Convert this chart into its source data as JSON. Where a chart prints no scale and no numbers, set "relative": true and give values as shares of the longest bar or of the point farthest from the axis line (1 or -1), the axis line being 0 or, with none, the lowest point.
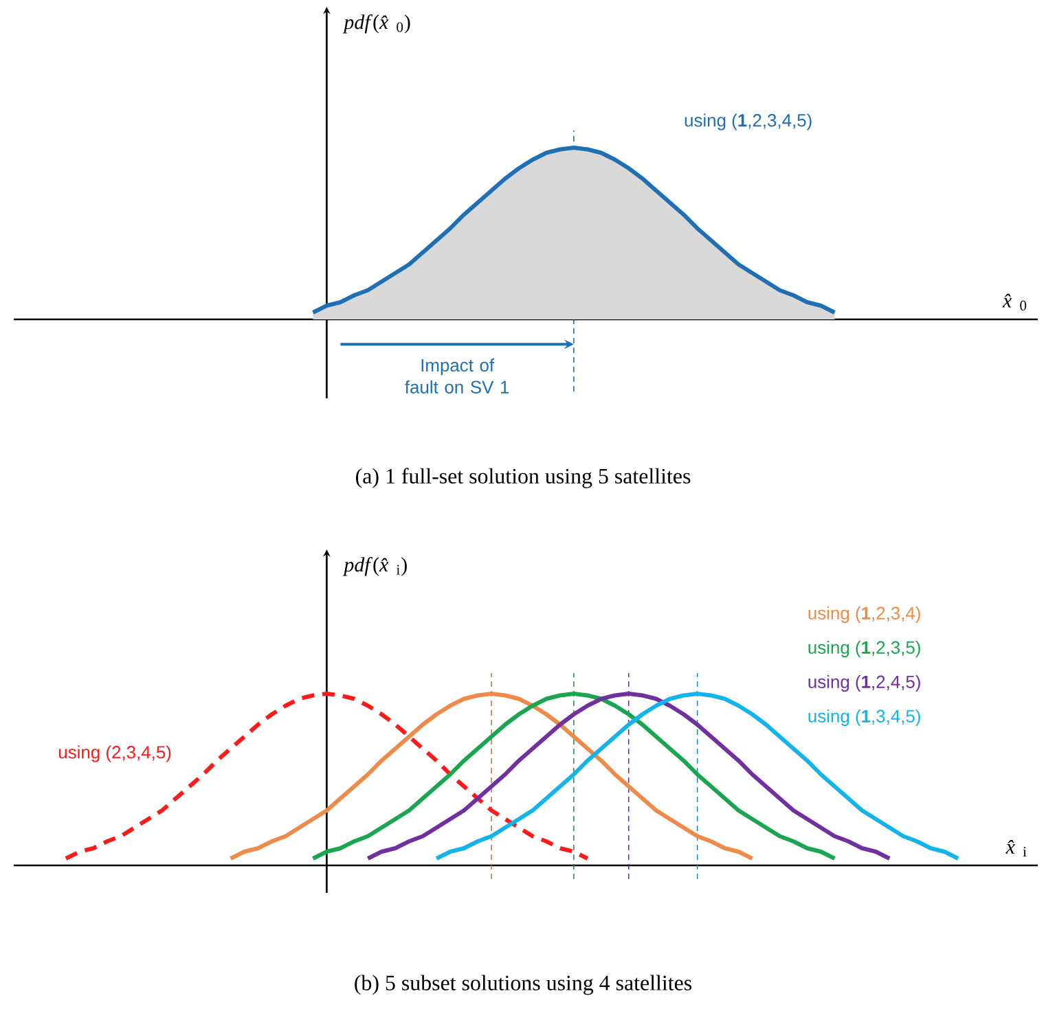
{
  "chart_data": [
    {
      "type": "area",
      "title": "(a) 1 full-set solution using 5 satellites",
      "xlabel": "*x̂*$_{0}$",
      "ylabel": "*pdf*(*x̂*$_{0}$)",
      "relative": true,
      "categories": [
        null,
        null,
        null,
        null,
        null,
        null,
        null,
        null,
        null,
        null,
        null,
        null,
        null,
        null,
        null,
        null,
        null,
        null,
        null,
        null,
        null,
        null,
        null,
        null,
        null,
        null,
        null,
        null,
        null,
        null,
        null,
        null,
        null,
        null,
        null,
        null,
        null,
        null,
        null,
        null,
        null,
        null,
        null,
        null,
        null,
        null,
        null,
        null,
        null,
        null,
        null,
        null,
        null,
        null,
        null,
        null,
        null,
        null,
        null,
        null,
        null,
        null,
        null,
        null,
        null,
        null,
        null,
        null,
        null,
        null,
        null,
        null,
        null,
        null
      ],
      "annotations": [
        "Impact of fault on SV 1"
      ],
      "series": [
        {
          "name": "using (**1**,2,3,4,5)",
          "color": "#1f6fb5",
          "values": [
            null,
            null,
            null,
            null,
            null,
            null,
            null,
            null,
            null,
            null,
            null,
            null,
            null,
            null,
            null,
            null,
            null,
            null,
            null,
            null,
            null,
            0.04,
            0.08,
            0.1,
            0.14,
            0.17,
            0.22,
            0.27,
            0.32,
            0.39,
            0.46,
            0.53,
            0.61,
            0.68,
            0.75,
            0.82,
            0.88,
            0.93,
            0.97,
            0.99,
            1,
            0.99,
            0.97,
            0.93,
            0.88,
            0.82,
            0.75,
            0.68,
            0.61,
            0.53,
            0.46,
            0.39,
            0.32,
            0.27,
            0.22,
            0.17,
            0.14,
            0.1,
            0.08,
            0.04,
            null,
            null,
            null,
            null,
            null,
            null,
            null,
            null,
            null,
            null,
            null,
            null,
            null,
            null
          ]
        }
      ]
    },
    {
      "type": "line",
      "title": "(b) 5 subset solutions using 4 satellites",
      "xlabel": "*x̂*$_{i}$",
      "ylabel": "*pdf*(*x̂*$_{i}$)",
      "relative": true,
      "categories": [
        null,
        null,
        null,
        null,
        null,
        null,
        null,
        null,
        null,
        null,
        null,
        null,
        null,
        null,
        null,
        null,
        null,
        null,
        null,
        null,
        null,
        null,
        null,
        null,
        null,
        null,
        null,
        null,
        null,
        null,
        null,
        null,
        null,
        null,
        null,
        null,
        null,
        null,
        null,
        null,
        null,
        null,
        null,
        null,
        null,
        null,
        null,
        null,
        null,
        null,
        null,
        null,
        null,
        null,
        null,
        null,
        null,
        null,
        null,
        null,
        null,
        null,
        null,
        null,
        null,
        null,
        null,
        null,
        null,
        null,
        null,
        null,
        null,
        null
      ],
      "series": [
        {
          "name": "using (2,3,4,5)",
          "color": "#ff1a1a",
          "line_style": "dashed",
          "values": [
            null,
            null,
            null,
            0.04,
            0.08,
            0.1,
            0.14,
            0.17,
            0.22,
            0.27,
            0.32,
            0.39,
            0.46,
            0.53,
            0.61,
            0.68,
            0.75,
            0.82,
            0.88,
            0.93,
            0.97,
            0.99,
            1,
            0.99,
            0.97,
            0.93,
            0.88,
            0.82,
            0.75,
            0.68,
            0.61,
            0.53,
            0.46,
            0.39,
            0.32,
            0.27,
            0.22,
            0.17,
            0.14,
            0.1,
            0.08,
            0.04,
            null,
            null,
            null,
            null,
            null,
            null,
            null,
            null,
            null,
            null,
            null,
            null,
            null,
            null,
            null,
            null,
            null,
            null,
            null,
            null,
            null,
            null,
            null,
            null,
            null,
            null,
            null,
            null,
            null,
            null,
            null,
            null
          ]
        },
        {
          "name": "using (**1**,2,3,4)",
          "color": "#ee8a4a",
          "values": [
            null,
            null,
            null,
            null,
            null,
            null,
            null,
            null,
            null,
            null,
            null,
            null,
            null,
            null,
            null,
            0.04,
            0.08,
            0.1,
            0.14,
            0.17,
            0.22,
            0.27,
            0.32,
            0.39,
            0.46,
            0.53,
            0.61,
            0.68,
            0.75,
            0.82,
            0.88,
            0.93,
            0.97,
            0.99,
            1,
            0.99,
            0.97,
            0.93,
            0.88,
            0.82,
            0.75,
            0.68,
            0.61,
            0.53,
            0.46,
            0.39,
            0.32,
            0.27,
            0.22,
            0.17,
            0.14,
            0.1,
            0.08,
            0.04,
            null,
            null,
            null,
            null,
            null,
            null,
            null,
            null,
            null,
            null,
            null,
            null,
            null,
            null,
            null,
            null,
            null,
            null,
            null,
            null
          ]
        },
        {
          "name": "using (**1**,2,3,5)",
          "color": "#1aa650",
          "values": [
            null,
            null,
            null,
            null,
            null,
            null,
            null,
            null,
            null,
            null,
            null,
            null,
            null,
            null,
            null,
            null,
            null,
            null,
            null,
            null,
            null,
            0.04,
            0.08,
            0.1,
            0.14,
            0.17,
            0.22,
            0.27,
            0.32,
            0.39,
            0.46,
            0.53,
            0.61,
            0.68,
            0.75,
            0.82,
            0.88,
            0.93,
            0.97,
            0.99,
            1,
            0.99,
            0.97,
            0.93,
            0.88,
            0.82,
            0.75,
            0.68,
            0.61,
            0.53,
            0.46,
            0.39,
            0.32,
            0.27,
            0.22,
            0.17,
            0.14,
            0.1,
            0.08,
            0.04,
            null,
            null,
            null,
            null,
            null,
            null,
            null,
            null,
            null,
            null,
            null,
            null,
            null,
            null
          ]
        },
        {
          "name": "using (**1**,2,4,5)",
          "color": "#7030a0",
          "values": [
            null,
            null,
            null,
            null,
            null,
            null,
            null,
            null,
            null,
            null,
            null,
            null,
            null,
            null,
            null,
            null,
            null,
            null,
            null,
            null,
            null,
            null,
            null,
            null,
            null,
            0.04,
            0.08,
            0.1,
            0.14,
            0.17,
            0.22,
            0.27,
            0.32,
            0.39,
            0.46,
            0.53,
            0.61,
            0.68,
            0.75,
            0.82,
            0.88,
            0.93,
            0.97,
            0.99,
            1,
            0.99,
            0.97,
            0.93,
            0.88,
            0.82,
            0.75,
            0.68,
            0.61,
            0.53,
            0.46,
            0.39,
            0.32,
            0.27,
            0.22,
            0.17,
            0.14,
            0.1,
            0.08,
            0.04,
            null,
            null,
            null,
            null,
            null,
            null,
            null,
            null,
            null,
            null
          ]
        },
        {
          "name": "using (**1**,3,4,5)",
          "color": "#14b4ea",
          "values": [
            null,
            null,
            null,
            null,
            null,
            null,
            null,
            null,
            null,
            null,
            null,
            null,
            null,
            null,
            null,
            null,
            null,
            null,
            null,
            null,
            null,
            null,
            null,
            null,
            null,
            null,
            null,
            null,
            null,
            null,
            0.04,
            0.08,
            0.1,
            0.14,
            0.17,
            0.22,
            0.27,
            0.32,
            0.39,
            0.46,
            0.53,
            0.61,
            0.68,
            0.75,
            0.82,
            0.88,
            0.93,
            0.97,
            0.99,
            1,
            0.99,
            0.97,
            0.93,
            0.88,
            0.82,
            0.75,
            0.68,
            0.61,
            0.53,
            0.46,
            0.39,
            0.32,
            0.27,
            0.22,
            0.17,
            0.14,
            0.1,
            0.08,
            0.04,
            null,
            null,
            null,
            null,
            null
          ]
        }
      ]
    }
  ]
}
